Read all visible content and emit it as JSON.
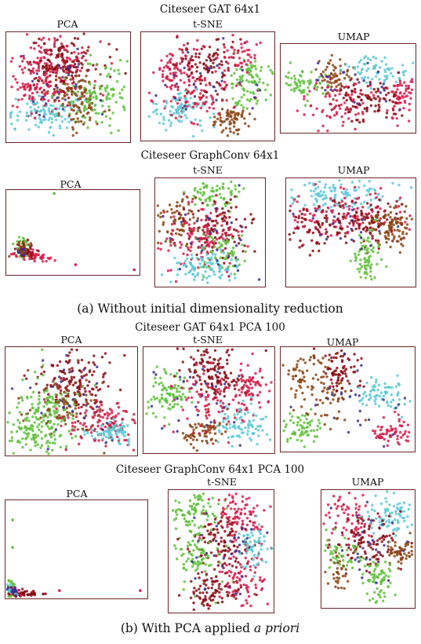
{
  "figure": {
    "section_a": {
      "title_1": "Citeseer GAT 64x1",
      "title_2": "Citeseer GraphConv 64x1",
      "caption_prefix": "(a)",
      "caption_text": "Without initial dimensionality reduction"
    },
    "section_b": {
      "title_1": "Citeseer GAT 64x1 PCA 100",
      "title_2": "Citeseer GraphConv 64x1 PCA 100",
      "caption_prefix": "(b)",
      "caption_text": "With PCA applied",
      "caption_italic": "a priori"
    },
    "method_labels": {
      "pca": "PCA",
      "tsne": "t-SNE",
      "umap": "UMAP"
    }
  },
  "colors": {
    "class_colors": [
      "#d81b4a",
      "#8b0a14",
      "#5fc13c",
      "#5cc9d6",
      "#8b4513",
      "#3b2f8f"
    ],
    "frame": "#6b2626"
  },
  "chart_data": [
    {
      "type": "scatter",
      "model": "Citeseer GAT 64x1",
      "method": "PCA",
      "shape": "dense-cloud"
    },
    {
      "type": "scatter",
      "model": "Citeseer GAT 64x1",
      "method": "t-SNE",
      "shape": "clustered"
    },
    {
      "type": "scatter",
      "model": "Citeseer GAT 64x1",
      "method": "UMAP",
      "shape": "star-arms"
    },
    {
      "type": "scatter",
      "model": "Citeseer GraphConv 64x1",
      "method": "PCA",
      "shape": "collapsed-wedge"
    },
    {
      "type": "scatter",
      "model": "Citeseer GraphConv 64x1",
      "method": "t-SNE",
      "shape": "clustered"
    },
    {
      "type": "scatter",
      "model": "Citeseer GraphConv 64x1",
      "method": "UMAP",
      "shape": "fan"
    },
    {
      "type": "scatter",
      "model": "Citeseer GAT 64x1 PCA 100",
      "method": "PCA",
      "shape": "triangle"
    },
    {
      "type": "scatter",
      "model": "Citeseer GAT 64x1 PCA 100",
      "method": "t-SNE",
      "shape": "clustered"
    },
    {
      "type": "scatter",
      "model": "Citeseer GAT 64x1 PCA 100",
      "method": "UMAP",
      "shape": "star-arms"
    },
    {
      "type": "scatter",
      "model": "Citeseer GraphConv 64x1 PCA 100",
      "method": "PCA",
      "shape": "collapsed-corner"
    },
    {
      "type": "scatter",
      "model": "Citeseer GraphConv 64x1 PCA 100",
      "method": "t-SNE",
      "shape": "clustered"
    },
    {
      "type": "scatter",
      "model": "Citeseer GraphConv 64x1 PCA 100",
      "method": "UMAP",
      "shape": "star-arms"
    }
  ]
}
